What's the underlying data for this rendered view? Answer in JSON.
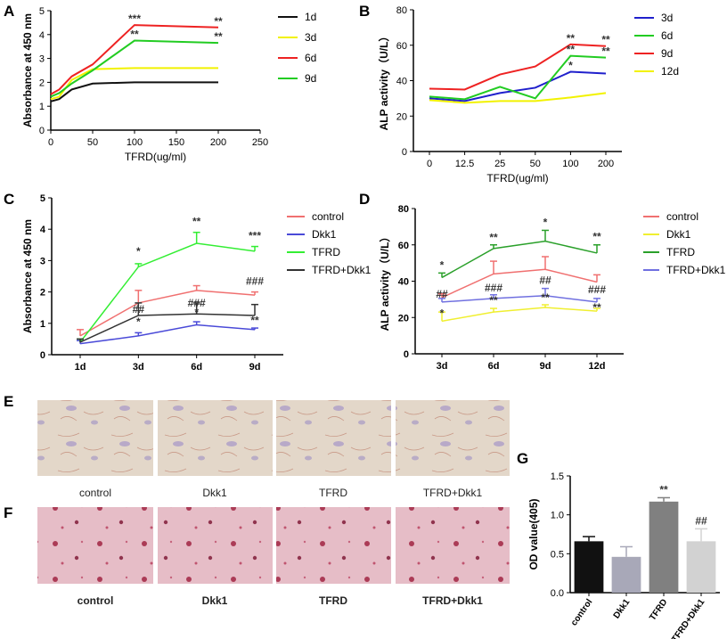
{
  "panel_letters": [
    "A",
    "B",
    "C",
    "D",
    "E",
    "F",
    "G"
  ],
  "colors": {
    "black": "#111111",
    "yellow": "#f2f200",
    "red": "#ee2222",
    "green": "#22cc22",
    "blue": "#2020cc",
    "salmon": "#f07070",
    "indigo": "#4a4ad8",
    "lime": "#33ee33",
    "darkgreen": "#2aa02a",
    "lyellow": "#f0ef30",
    "lavender": "#7070e0",
    "dark": "#333333",
    "g_control": "#111111",
    "g_dkk1": "#a8a8b8",
    "g_tfrd": "#808080",
    "g_tfrd_dkk1": "#d2d2d2"
  },
  "images": {
    "row_e_labels": [
      "control",
      "Dkk1",
      "TFRD",
      "TFRD+Dkk1"
    ],
    "row_f_labels": [
      "control",
      "Dkk1",
      "TFRD",
      "TFRD+Dkk1"
    ]
  },
  "chart_data": [
    {
      "id": "A",
      "type": "line",
      "x": [
        0,
        10,
        25,
        50,
        100,
        200
      ],
      "xlabel": "TFRD(ug/ml)",
      "ylabel": "Absorbance at 450 nm",
      "xlim": [
        0,
        250
      ],
      "ylim": [
        0,
        5
      ],
      "xticks": [
        0,
        50,
        100,
        150,
        200,
        250
      ],
      "yticks": [
        0,
        1,
        2,
        3,
        4,
        5
      ],
      "series": [
        {
          "name": "1d",
          "color": "black",
          "values": [
            1.2,
            1.3,
            1.7,
            1.95,
            2.0,
            2.0
          ]
        },
        {
          "name": "3d",
          "color": "yellow",
          "values": [
            1.3,
            1.4,
            2.1,
            2.55,
            2.6,
            2.6
          ]
        },
        {
          "name": "6d",
          "color": "red",
          "values": [
            1.5,
            1.7,
            2.25,
            2.75,
            4.4,
            4.3
          ]
        },
        {
          "name": "9d",
          "color": "green",
          "values": [
            1.4,
            1.55,
            1.95,
            2.5,
            3.75,
            3.65
          ]
        }
      ],
      "annotations": [
        {
          "x": 100,
          "y": 4.4,
          "text": "***"
        },
        {
          "x": 200,
          "y": 4.3,
          "text": "**"
        },
        {
          "x": 100,
          "y": 3.75,
          "text": "**"
        },
        {
          "x": 200,
          "y": 3.65,
          "text": "**"
        }
      ]
    },
    {
      "id": "B",
      "type": "line",
      "categories": [
        "0",
        "12.5",
        "25",
        "50",
        "100",
        "200"
      ],
      "xlabel": "TFRD(ug/ml)",
      "ylabel": "ALP activity（U/L）",
      "ylim": [
        0,
        80
      ],
      "yticks": [
        0,
        20,
        40,
        60,
        80
      ],
      "series": [
        {
          "name": "3d",
          "color": "blue",
          "values": [
            30,
            28.5,
            33,
            36,
            45,
            44
          ]
        },
        {
          "name": "6d",
          "color": "green",
          "values": [
            31,
            29.5,
            36.5,
            30,
            54,
            53
          ]
        },
        {
          "name": "9d",
          "color": "red",
          "values": [
            35.5,
            35,
            43.5,
            48,
            60.5,
            59.5
          ]
        },
        {
          "name": "12d",
          "color": "yellow",
          "values": [
            29,
            27.5,
            28.5,
            28.5,
            30.5,
            33
          ]
        }
      ],
      "annotations": [
        {
          "i": 4,
          "y": 60.5,
          "text": "**"
        },
        {
          "i": 5,
          "y": 59.5,
          "text": "**"
        },
        {
          "i": 4,
          "y": 54,
          "text": "**"
        },
        {
          "i": 5,
          "y": 53,
          "text": "**"
        },
        {
          "i": 4,
          "y": 45,
          "text": "*"
        }
      ]
    },
    {
      "id": "C",
      "type": "line",
      "categories": [
        "1d",
        "3d",
        "6d",
        "9d"
      ],
      "xlabel": "",
      "ylabel": "Absorbance at 450 nm",
      "ylim": [
        0,
        5
      ],
      "yticks": [
        0,
        1,
        2,
        3,
        4,
        5
      ],
      "series": [
        {
          "name": "control",
          "color": "salmon",
          "values": [
            0.6,
            1.65,
            2.05,
            1.9
          ],
          "errors": [
            0.2,
            0.4,
            0.15,
            0.1
          ]
        },
        {
          "name": "Dkk1",
          "color": "indigo",
          "values": [
            0.35,
            0.6,
            0.95,
            0.8
          ],
          "errors": [
            0.1,
            0.1,
            0.1,
            0.05
          ]
        },
        {
          "name": "TFRD",
          "color": "lime",
          "values": [
            0.4,
            2.8,
            3.55,
            3.3
          ],
          "errors": [
            0.1,
            0.1,
            0.35,
            0.15
          ]
        },
        {
          "name": "TFRD+Dkk1",
          "color": "dark",
          "values": [
            0.4,
            1.25,
            1.3,
            1.25
          ],
          "errors": [
            0.1,
            0.4,
            0.35,
            0.35
          ]
        }
      ],
      "annotations": [
        {
          "i": 1,
          "y": 3.1,
          "text": "*"
        },
        {
          "i": 2,
          "y": 4.05,
          "text": "**"
        },
        {
          "i": 3,
          "y": 3.6,
          "text": "***"
        },
        {
          "i": 1,
          "y": 1.25,
          "text": "##"
        },
        {
          "i": 2,
          "y": 1.45,
          "text": "###"
        },
        {
          "i": 3,
          "y": 2.15,
          "text": "###"
        },
        {
          "i": 1,
          "y": 0.85,
          "text": "*"
        },
        {
          "i": 2,
          "y": 1.15,
          "text": "*"
        },
        {
          "i": 3,
          "y": 0.9,
          "text": "**"
        }
      ]
    },
    {
      "id": "D",
      "type": "line",
      "categories": [
        "3d",
        "6d",
        "9d",
        "12d"
      ],
      "xlabel": "",
      "ylabel": "ALP activity（U/L）",
      "ylim": [
        0,
        80
      ],
      "yticks": [
        0,
        20,
        40,
        60,
        80
      ],
      "series": [
        {
          "name": "control",
          "color": "salmon",
          "values": [
            31,
            44,
            46.5,
            39.5
          ],
          "errors": [
            2,
            7,
            7,
            4
          ]
        },
        {
          "name": "Dkk1",
          "color": "lyellow",
          "values": [
            18,
            23,
            25.5,
            23.5
          ],
          "errors": [
            5,
            2,
            1.5,
            1.5
          ]
        },
        {
          "name": "TFRD",
          "color": "darkgreen",
          "values": [
            42,
            58,
            62,
            55.5
          ],
          "errors": [
            2.5,
            2,
            6,
            4.5
          ]
        },
        {
          "name": "TFRD+Dkk1",
          "color": "lavender",
          "values": [
            28.5,
            30.5,
            32,
            28.5
          ],
          "errors": [
            2,
            2,
            4,
            2
          ]
        }
      ],
      "annotations": [
        {
          "i": 0,
          "y": 45.5,
          "text": "*"
        },
        {
          "i": 1,
          "y": 60.5,
          "text": "**"
        },
        {
          "i": 2,
          "y": 69,
          "text": "*"
        },
        {
          "i": 3,
          "y": 61,
          "text": "**"
        },
        {
          "i": 0,
          "y": 29.5,
          "text": "##"
        },
        {
          "i": 1,
          "y": 33,
          "text": "###"
        },
        {
          "i": 2,
          "y": 37,
          "text": "##"
        },
        {
          "i": 3,
          "y": 32,
          "text": "###"
        },
        {
          "i": 0,
          "y": 19,
          "text": "*"
        },
        {
          "i": 1,
          "y": 26,
          "text": "**"
        },
        {
          "i": 2,
          "y": 27.5,
          "text": "**"
        },
        {
          "i": 3,
          "y": 22,
          "text": "**"
        }
      ]
    },
    {
      "id": "G",
      "type": "bar",
      "categories": [
        "control",
        "Dkk1",
        "TFRD",
        "TFRD+Dkk1"
      ],
      "values": [
        0.66,
        0.46,
        1.17,
        0.66
      ],
      "errors": [
        0.06,
        0.13,
        0.05,
        0.16
      ],
      "colors": [
        "g_control",
        "g_dkk1",
        "g_tfrd",
        "g_tfrd_dkk1"
      ],
      "xlabel": "",
      "ylabel": "OD value(405)",
      "ylim": [
        0,
        1.5
      ],
      "yticks": [
        "0.0",
        "0.5",
        "1.0",
        "1.5"
      ],
      "annotations": [
        {
          "i": 2,
          "text": "**"
        },
        {
          "i": 3,
          "text": "##"
        }
      ]
    }
  ]
}
